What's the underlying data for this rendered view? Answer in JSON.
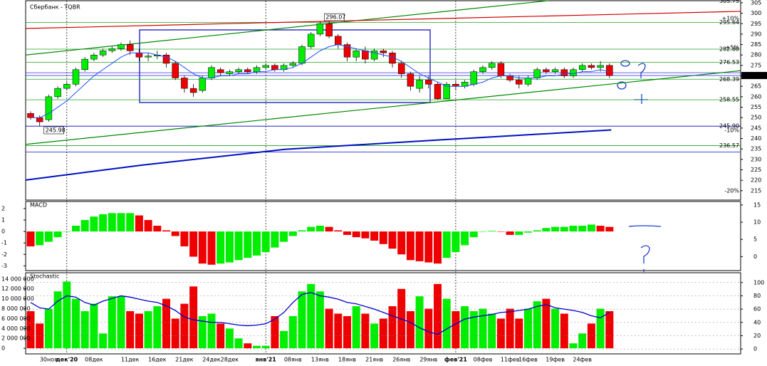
{
  "chart_data": [
    {
      "type": "candlestick",
      "title": "Сбербанк - TQBR",
      "categories": [
        null,
        null,
        "30ноя",
        null,
        "дек'20",
        null,
        null,
        "08дек",
        null,
        null,
        null,
        "11дек",
        null,
        null,
        "16дек",
        null,
        null,
        "21дек",
        null,
        null,
        "24дек",
        null,
        "28дек",
        null,
        null,
        null,
        "янв'21",
        null,
        null,
        "08янв",
        null,
        null,
        "13янв",
        null,
        null,
        "18янв",
        null,
        null,
        "21янв",
        null,
        null,
        "26янв",
        null,
        null,
        "29янв",
        null,
        null,
        "фев'21",
        null,
        null,
        "08фев",
        null,
        null,
        "11фев",
        null,
        "16фев",
        null,
        null,
        "19фев",
        null,
        null,
        "24фев",
        null,
        null,
        null
      ],
      "open": [
        252,
        250,
        249,
        260,
        264,
        266,
        273,
        278,
        280,
        282,
        283,
        285,
        281,
        279,
        279.5,
        280,
        276,
        269,
        264,
        263,
        269,
        273,
        271,
        272,
        273,
        272,
        274,
        275,
        273,
        275,
        276,
        284,
        290,
        295,
        289,
        285,
        279,
        282,
        278,
        282,
        281,
        276,
        271,
        264,
        268,
        266,
        259,
        266,
        265,
        266,
        272,
        274,
        276,
        270,
        268,
        266,
        269,
        273,
        272,
        273,
        270,
        273,
        275,
        274,
        275
      ],
      "high": [
        253,
        251,
        261,
        265,
        267,
        274,
        279,
        281,
        283,
        284,
        286,
        287,
        283,
        281,
        282,
        281,
        277,
        270,
        266,
        270,
        275,
        274,
        273,
        274,
        274,
        275,
        276,
        276,
        276,
        277,
        285,
        291,
        296.07,
        296,
        290,
        286,
        283,
        284,
        283,
        283,
        282,
        277,
        272,
        270,
        270,
        267,
        267,
        268,
        268,
        273,
        275,
        277,
        277,
        271,
        270,
        270,
        274,
        274,
        274,
        274,
        274,
        276,
        276,
        277,
        276
      ],
      "low": [
        249,
        245.98,
        248,
        259,
        263,
        265,
        272,
        277,
        279,
        281,
        282,
        280,
        277,
        277,
        278,
        274,
        268,
        262,
        260,
        262,
        268,
        270,
        270,
        271,
        271,
        271,
        273,
        272,
        272,
        274,
        275,
        283,
        289,
        288,
        283,
        277,
        277,
        276,
        277,
        279,
        274,
        269,
        263,
        262,
        264,
        258.55,
        259,
        263,
        264,
        265,
        271,
        273,
        269,
        267,
        264,
        265,
        268,
        271,
        271,
        269,
        269,
        272,
        273,
        272,
        269
      ],
      "close": [
        250,
        248,
        260,
        264,
        266,
        273,
        278,
        280,
        282,
        283,
        285,
        282,
        279,
        279.5,
        280,
        276,
        269,
        264,
        262,
        269,
        274,
        271.5,
        272,
        273,
        272,
        274,
        275,
        273,
        275,
        276,
        284,
        290,
        295,
        289,
        285,
        279,
        282,
        278,
        282,
        281,
        276,
        271,
        265,
        268,
        266,
        259,
        266,
        265,
        267,
        272,
        274,
        276,
        270,
        268,
        266,
        269,
        273,
        272,
        273,
        270,
        273,
        275,
        274,
        275,
        270.17
      ],
      "ma": [
        250,
        250,
        252,
        255,
        258,
        262,
        266,
        270,
        273,
        276,
        279,
        281,
        281,
        281,
        280,
        279,
        277,
        274,
        271,
        269,
        269,
        270,
        270,
        271,
        271,
        272,
        272,
        273,
        273,
        274,
        276,
        279,
        282,
        284,
        285,
        284,
        283,
        282,
        281,
        280,
        279,
        277,
        274,
        271,
        269,
        267,
        265,
        265,
        265,
        266,
        267,
        269,
        270,
        270,
        269,
        269,
        269,
        270,
        270,
        271,
        271,
        272,
        272,
        273,
        272
      ],
      "ma_color": "#2050ff",
      "up_color": "#00ee00",
      "down_color": "#ee0000",
      "ylim": [
        210.5,
        306
      ],
      "yticks": [
        215,
        220,
        225,
        230,
        235,
        240,
        245,
        250,
        255,
        260,
        265,
        270,
        275,
        280,
        285,
        290,
        295,
        300,
        305
      ],
      "levels": [
        {
          "value": 305.75,
          "color": "#e07000"
        },
        {
          "value": 297.4,
          "label": "+10%",
          "color": "#e07000"
        },
        {
          "value": 295.64,
          "color": "#008000",
          "line_color": "#20a020"
        },
        {
          "value": 283.5,
          "label": "+5%",
          "color": "#e07000"
        },
        {
          "value": 282.8,
          "label": "282.80",
          "color": "#008000",
          "line_color": "#20a020"
        },
        {
          "value": 276.53,
          "color": "#008000",
          "line_color": "#20a020"
        },
        {
          "value": 268.39,
          "color": "#008000",
          "line_color": "#20a020"
        },
        {
          "value": 258.55,
          "color": "#008000",
          "line_color": "#20a020"
        },
        {
          "value": 245.9,
          "label": "245.90",
          "color": "#008000",
          "line_color": "#0000c0"
        },
        {
          "value": 243.9,
          "label": "-10%",
          "color": "#e07000"
        },
        {
          "value": 236.57,
          "color": "#008000",
          "line_color": "#20a020"
        },
        {
          "value": 215,
          "label": "-20%",
          "color": "#e07000"
        }
      ],
      "current": {
        "value": 270.17,
        "line_color": "#4040ff"
      },
      "hlines": [
        {
          "value": 271.5,
          "color": "#3030d0"
        },
        {
          "value": 233.5,
          "color": "#3030d0"
        }
      ],
      "trendlines": [
        {
          "points": [
            [
              -0.55,
              280.0
            ],
            [
              57.2,
              306.0
            ]
          ],
          "color": "#008800",
          "width": 1.2
        },
        {
          "points": [
            [
              -0.55,
              237.2
            ],
            [
              78.5,
              272.5
            ]
          ],
          "color": "#008800",
          "width": 1.2
        },
        {
          "points": [
            [
              -0.55,
              292.7
            ],
            [
              78.5,
              300.9
            ]
          ],
          "color": "#d00000",
          "width": 1.2
        },
        {
          "points": [
            [
              -0.55,
              220.1
            ],
            [
              12.4,
              227.3
            ],
            [
              28.1,
              234.8
            ],
            [
              43.9,
              239.0
            ],
            [
              64.2,
              244.1
            ]
          ],
          "color": "#0010c0",
          "width": 2
        }
      ],
      "point_labels": [
        {
          "series": "high",
          "index": 32
        },
        {
          "series": "low",
          "index": 1
        }
      ]
    },
    {
      "type": "bar",
      "title": "MACD",
      "values": [
        -1.3,
        -1.2,
        -0.9,
        -0.5,
        0,
        0.5,
        1.0,
        1.3,
        1.5,
        1.6,
        1.6,
        1.6,
        1.4,
        1.0,
        0.5,
        0.1,
        -0.4,
        -1.3,
        -2.2,
        -2.8,
        -2.9,
        -2.8,
        -2.7,
        -2.5,
        -2.3,
        -2.1,
        -1.8,
        -1.4,
        -0.9,
        -0.4,
        0.1,
        0.4,
        0.5,
        0.4,
        0.1,
        -0.3,
        -0.5,
        -0.6,
        -0.8,
        -1.1,
        -1.5,
        -2.0,
        -2.5,
        -2.6,
        -2.7,
        -2.8,
        -2.3,
        -1.8,
        -1.2,
        -0.5,
        0,
        0.05,
        0,
        -0.3,
        -0.3,
        -0.1,
        0.1,
        0.3,
        0.4,
        0.4,
        0.5,
        0.5,
        0.6,
        0.5,
        0.4
      ],
      "up_color": "#00ee00",
      "down_color": "#ee0000",
      "ylim": [
        -3.35,
        2.55
      ],
      "yticks": [
        -3,
        -2,
        -1,
        0,
        1,
        2
      ],
      "y2lim": [
        -3.85,
        15.8
      ],
      "y2ticks": [
        0,
        5,
        10,
        15
      ]
    },
    {
      "type": "bar",
      "title": "Stochastic",
      "values": [
        7500000,
        5000000,
        8000000,
        11500000,
        13500000,
        10000000,
        7500000,
        9000000,
        3000000,
        10500000,
        10500000,
        7500000,
        7000000,
        7500000,
        8500000,
        10000000,
        6000000,
        9000000,
        12500000,
        6500000,
        7000000,
        5000000,
        4000000,
        2000000,
        1000000,
        500000,
        500000,
        6500000,
        3500000,
        6500000,
        11500000,
        13000000,
        11500000,
        8000000,
        7000000,
        6500000,
        8500000,
        7000000,
        5000000,
        6000000,
        8500000,
        12000000,
        7500000,
        10500000,
        8000000,
        13000000,
        10000000,
        7500000,
        8500000,
        7500000,
        8000000,
        7000000,
        6000000,
        8000000,
        6000000,
        8000000,
        9500000,
        10000000,
        8000000,
        7000000,
        1000000,
        3000000,
        5000000,
        8000000,
        7500000
      ],
      "ylim": [
        -990000,
        15130000
      ],
      "yticks": [
        0,
        {
          "value": 2000000,
          "label": "2 000 000"
        },
        {
          "value": 4000000,
          "label": "4 000 000"
        },
        {
          "value": 6000000,
          "label": "6 000 000"
        },
        {
          "value": 8000000,
          "label": "8 000 000"
        },
        {
          "value": 10000000,
          "label": "10 000 000"
        },
        {
          "value": 12000000,
          "label": "12 000 000"
        },
        {
          "value": 14000000,
          "label": "14 000 000"
        }
      ],
      "series": [
        {
          "color": "#0000d0",
          "axis": "y2",
          "values": [
            70,
            62,
            60,
            72,
            80,
            78,
            70,
            66,
            72,
            76,
            80,
            78,
            75,
            72,
            70,
            65,
            58,
            48,
            44,
            42,
            40,
            40,
            38,
            36,
            35,
            36,
            38,
            45,
            55,
            70,
            82,
            85,
            80,
            78,
            75,
            70,
            68,
            64,
            60,
            55,
            50,
            45,
            40,
            32,
            26,
            22,
            30,
            38,
            45,
            48,
            50,
            52,
            55,
            56,
            58,
            60,
            64,
            67,
            62,
            60,
            58,
            55,
            50,
            47,
            55
          ]
        }
      ],
      "y2lim": [
        -6.3,
        113.7
      ],
      "y2ticks": [
        0,
        20,
        40,
        60,
        80,
        100
      ]
    }
  ]
}
